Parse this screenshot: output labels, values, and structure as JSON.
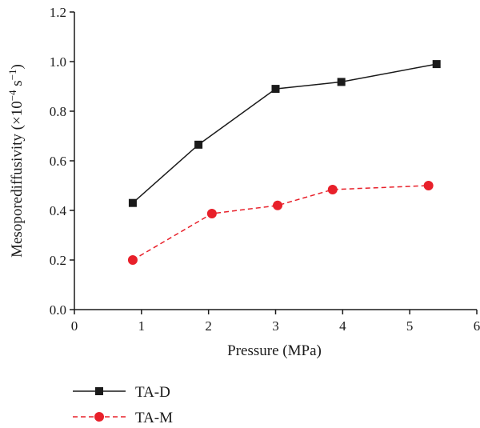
{
  "chart_data": {
    "type": "line",
    "xlabel": "Pressure (MPa)",
    "ylabel": {
      "base": "Mesoporediffusivity (×10",
      "exp1": "−4",
      "mid": " s",
      "exp2": "−1",
      "end": ")"
    },
    "xlim": [
      0,
      6
    ],
    "ylim": [
      0.0,
      1.2
    ],
    "xticks": [
      0,
      1,
      2,
      3,
      4,
      5,
      6
    ],
    "yticks": [
      0.0,
      0.2,
      0.4,
      0.6,
      0.8,
      1.0,
      1.2
    ],
    "xtick_labels": [
      "0",
      "1",
      "2",
      "3",
      "4",
      "5",
      "6"
    ],
    "ytick_labels": [
      "0.0",
      "0.2",
      "0.4",
      "0.6",
      "0.8",
      "1.0",
      "1.2"
    ],
    "grid": false,
    "legend": "bottom-left",
    "series": [
      {
        "name": "TA-D",
        "color": "#1a1a1a",
        "marker": "square",
        "dash": "solid",
        "x": [
          0.87,
          1.85,
          3.0,
          3.98,
          5.4
        ],
        "y": [
          0.43,
          0.665,
          0.89,
          0.918,
          0.99
        ]
      },
      {
        "name": "TA-M",
        "color": "#e8202a",
        "marker": "circle",
        "dash": "dashed",
        "x": [
          0.87,
          2.05,
          3.03,
          3.85,
          5.28
        ],
        "y": [
          0.2,
          0.387,
          0.42,
          0.484,
          0.5
        ]
      }
    ]
  }
}
